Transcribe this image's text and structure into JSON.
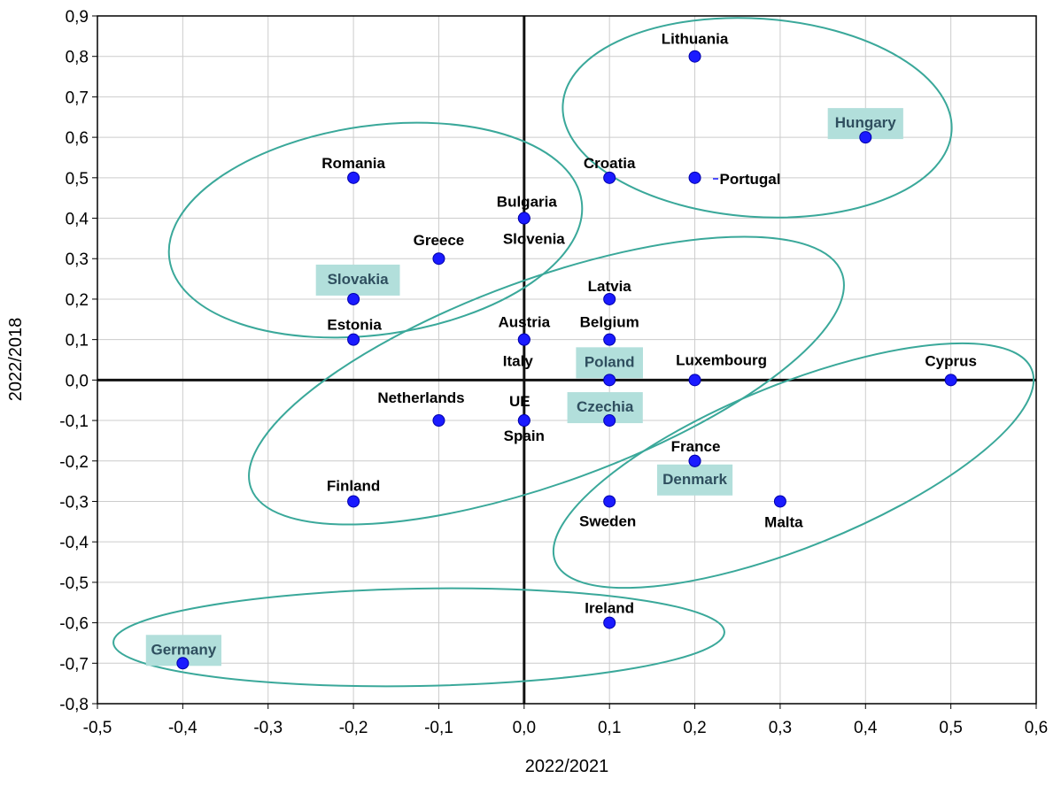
{
  "chart_data": {
    "type": "scatter",
    "xlabel": "2022/2021",
    "ylabel": "2022/2018",
    "xlim": [
      -0.5,
      0.6
    ],
    "ylim": [
      -0.8,
      0.9
    ],
    "x_ticks": [
      "-0,5",
      "-0,4",
      "-0,3",
      "-0,2",
      "-0,1",
      "0,0",
      "0,1",
      "0,2",
      "0,3",
      "0,4",
      "0,5",
      "0,6"
    ],
    "y_ticks": [
      "0,9",
      "0,8",
      "0,7",
      "0,6",
      "0,5",
      "0,4",
      "0,3",
      "0,2",
      "0,1",
      "0,0",
      "-0,1",
      "-0,2",
      "-0,3",
      "-0,4",
      "-0,5",
      "-0,6",
      "-0,7",
      "-0,8"
    ],
    "grid": true,
    "highlight_color": "#b2dfdb",
    "point_color": "#1a1aff",
    "cluster_color": "#3aa89a",
    "points": [
      {
        "label": "Lithuania",
        "x": 0.2,
        "y": 0.8,
        "highlight": false
      },
      {
        "label": "Hungary",
        "x": 0.4,
        "y": 0.6,
        "highlight": true
      },
      {
        "label": "Croatia",
        "x": 0.1,
        "y": 0.5,
        "highlight": false
      },
      {
        "label": "Portugal",
        "x": 0.2,
        "y": 0.5,
        "highlight": false
      },
      {
        "label": "Romania",
        "x": -0.2,
        "y": 0.5,
        "highlight": false
      },
      {
        "label": "Bulgaria",
        "x": 0.0,
        "y": 0.4,
        "highlight": false
      },
      {
        "label": "Slovenia",
        "x": 0.0,
        "y": 0.4,
        "highlight": false
      },
      {
        "label": "Greece",
        "x": -0.1,
        "y": 0.3,
        "highlight": false
      },
      {
        "label": "Slovakia",
        "x": -0.2,
        "y": 0.2,
        "highlight": true
      },
      {
        "label": "Latvia",
        "x": 0.1,
        "y": 0.2,
        "highlight": false
      },
      {
        "label": "Estonia",
        "x": -0.2,
        "y": 0.1,
        "highlight": false
      },
      {
        "label": "Austria",
        "x": 0.0,
        "y": 0.1,
        "highlight": false
      },
      {
        "label": "Italy",
        "x": 0.0,
        "y": 0.1,
        "highlight": false
      },
      {
        "label": "Belgium",
        "x": 0.1,
        "y": 0.1,
        "highlight": false
      },
      {
        "label": "Poland",
        "x": 0.1,
        "y": 0.0,
        "highlight": true
      },
      {
        "label": "Luxembourg",
        "x": 0.2,
        "y": 0.0,
        "highlight": false
      },
      {
        "label": "Cyprus",
        "x": 0.5,
        "y": 0.0,
        "highlight": false
      },
      {
        "label": "Netherlands",
        "x": -0.1,
        "y": -0.1,
        "highlight": false
      },
      {
        "label": "UE",
        "x": 0.0,
        "y": -0.1,
        "highlight": false
      },
      {
        "label": "Spain",
        "x": 0.0,
        "y": -0.1,
        "highlight": false
      },
      {
        "label": "Czechia",
        "x": 0.1,
        "y": -0.1,
        "highlight": true
      },
      {
        "label": "France",
        "x": 0.2,
        "y": -0.2,
        "highlight": false
      },
      {
        "label": "Denmark",
        "x": 0.2,
        "y": -0.2,
        "highlight": true
      },
      {
        "label": "Finland",
        "x": -0.2,
        "y": -0.3,
        "highlight": false
      },
      {
        "label": "Sweden",
        "x": 0.1,
        "y": -0.3,
        "highlight": false
      },
      {
        "label": "Malta",
        "x": 0.3,
        "y": -0.3,
        "highlight": false
      },
      {
        "label": "Ireland",
        "x": 0.1,
        "y": -0.6,
        "highlight": false
      },
      {
        "label": "Germany",
        "x": -0.4,
        "y": -0.7,
        "highlight": true
      }
    ]
  }
}
